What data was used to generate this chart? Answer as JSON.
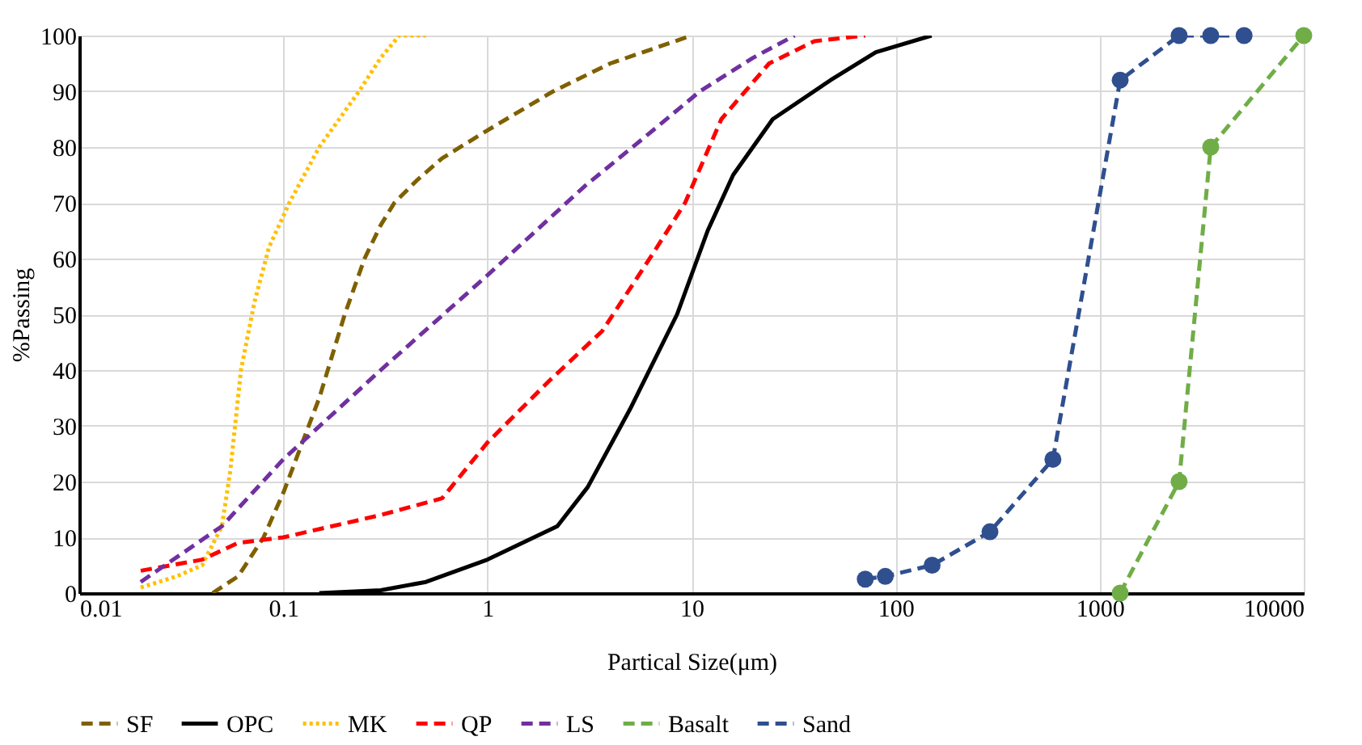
{
  "chart_data": {
    "type": "line",
    "xlabel": "Partical Size(μm)",
    "ylabel": "%Passing",
    "log": "x",
    "xlim": [
      0.01,
      10000
    ],
    "xticks": [
      0.01,
      0.1,
      1,
      10,
      100,
      1000,
      10000
    ],
    "ylim": [
      0,
      100
    ],
    "yticks": [
      0,
      10,
      20,
      30,
      40,
      50,
      60,
      70,
      80,
      90,
      100
    ],
    "grid": true,
    "legend": "bottom",
    "series": [
      {
        "name": "SF",
        "color": "#7f6000",
        "line_style": "dashed",
        "x": [
          0.045,
          0.06,
          0.08,
          0.1,
          0.15,
          0.2,
          0.25,
          0.3,
          0.35,
          0.45,
          0.6,
          1,
          2.1,
          4,
          10
        ],
        "values": [
          0,
          3,
          10,
          18,
          35,
          50,
          60,
          66,
          70,
          74,
          78,
          83,
          90,
          95,
          100
        ]
      },
      {
        "name": "OPC",
        "color": "#000000",
        "line_style": "solid",
        "x": [
          0.15,
          0.3,
          0.5,
          1,
          2.2,
          3.1,
          5,
          8.5,
          12,
          16,
          25,
          48,
          80,
          150
        ],
        "values": [
          0,
          0.5,
          2,
          6,
          12,
          19,
          33,
          50,
          65,
          75,
          85,
          92,
          97,
          100
        ]
      },
      {
        "name": "MK",
        "color": "#ffc000",
        "line_style": "dotted",
        "x": [
          0.02,
          0.03,
          0.04,
          0.05,
          0.055,
          0.062,
          0.072,
          0.085,
          0.107,
          0.15,
          0.235,
          0.3,
          0.37,
          0.5
        ],
        "values": [
          1,
          3,
          5,
          12,
          22,
          40,
          52,
          62,
          70,
          80,
          90,
          96,
          100,
          100
        ]
      },
      {
        "name": "QP",
        "color": "#ff0000",
        "line_style": "dashed",
        "x": [
          0.02,
          0.04,
          0.06,
          0.1,
          0.3,
          0.6,
          1,
          2,
          3.65,
          6.5,
          9.3,
          14,
          24,
          40,
          71
        ],
        "values": [
          4,
          6,
          9,
          10,
          14,
          17,
          27,
          38,
          47,
          61,
          70,
          85,
          95,
          99,
          100
        ]
      },
      {
        "name": "LS",
        "color": "#7030a0",
        "line_style": "dashed",
        "x": [
          0.02,
          0.05,
          0.1,
          0.3,
          1,
          3,
          6,
          11,
          20,
          32
        ],
        "values": [
          2,
          12,
          24,
          40,
          57,
          73,
          82,
          90,
          96,
          100
        ]
      },
      {
        "name": "Basalt",
        "color": "#70ad47",
        "line_style": "dashed",
        "marker": "circle",
        "x": [
          1260,
          2450,
          3500,
          10000
        ],
        "values": [
          0,
          20,
          80,
          100
        ]
      },
      {
        "name": "Sand",
        "color": "#2f4f8f",
        "line_style": "dashed",
        "marker": "circle",
        "x": [
          71,
          89,
          151,
          290,
          590,
          1260,
          2450,
          3500,
          5100
        ],
        "values": [
          2.5,
          3,
          5,
          11,
          24,
          92,
          100,
          100,
          100
        ]
      }
    ]
  }
}
